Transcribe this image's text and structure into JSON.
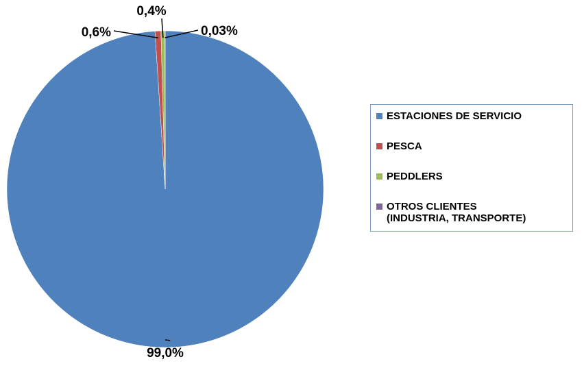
{
  "chart_data": {
    "type": "pie",
    "categories": [
      "ESTACIONES DE SERVICIO",
      "PESCA",
      "PEDDLERS",
      "OTROS CLIENTES\n(INDUSTRIA, TRANSPORTE)"
    ],
    "values": [
      99.0,
      0.6,
      0.4,
      0.03
    ],
    "value_labels": [
      "99,0%",
      "0,6%",
      "0,4%",
      "0,03%"
    ],
    "colors": [
      "#4f81bd",
      "#c0504d",
      "#9bbb59",
      "#8064a2"
    ],
    "legend": "right"
  }
}
